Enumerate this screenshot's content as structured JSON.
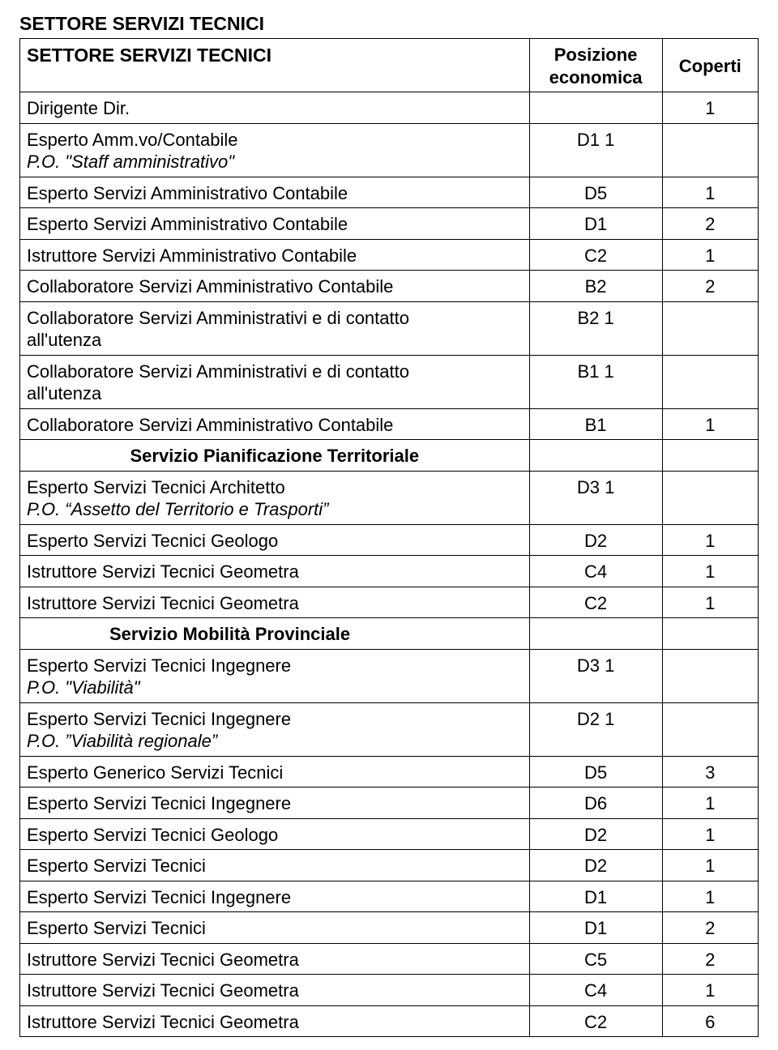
{
  "top_title": "SETTORE SERVIZI TECNICI",
  "header": {
    "title": "SETTORE SERVIZI TECNICI",
    "posizione": "Posizione economica",
    "coperti": "Coperti"
  },
  "rows": [
    {
      "desc_lines": [
        {
          "t": "Dirigente Dir.",
          "cls": ""
        }
      ],
      "pos": "",
      "cop": "1"
    },
    {
      "desc_lines": [
        {
          "t": "Esperto Amm.vo/Contabile",
          "cls": ""
        },
        {
          "t": "P.O. \"Staff amministrativo\"",
          "cls": "italic"
        }
      ],
      "pos": "D1 1",
      "cop": ""
    },
    {
      "desc_lines": [
        {
          "t": "Esperto Servizi Amministrativo Contabile",
          "cls": ""
        }
      ],
      "pos": "D5",
      "cop": "1"
    },
    {
      "desc_lines": [
        {
          "t": "Esperto Servizi Amministrativo Contabile",
          "cls": ""
        }
      ],
      "pos": "D1",
      "cop": "2"
    },
    {
      "desc_lines": [
        {
          "t": "Istruttore Servizi Amministrativo Contabile",
          "cls": ""
        }
      ],
      "pos": "C2",
      "cop": "1"
    },
    {
      "desc_lines": [
        {
          "t": "Collaboratore Servizi Amministrativo Contabile",
          "cls": ""
        }
      ],
      "pos": "B2",
      "cop": "2"
    },
    {
      "desc_lines": [
        {
          "t": "Collaboratore Servizi Amministrativi e di contatto",
          "cls": ""
        },
        {
          "t": "all'utenza",
          "cls": ""
        }
      ],
      "pos": "B2 1",
      "cop": ""
    },
    {
      "desc_lines": [
        {
          "t": "Collaboratore Servizi Amministrativi e di contatto",
          "cls": ""
        },
        {
          "t": "all'utenza",
          "cls": ""
        }
      ],
      "pos": "B1 1",
      "cop": ""
    },
    {
      "desc_lines": [
        {
          "t": "Collaboratore Servizi Amministrativo Contabile",
          "cls": ""
        }
      ],
      "pos": "B1",
      "cop": "1"
    },
    {
      "desc_lines": [
        {
          "t": "Servizio Pianificazione Territoriale",
          "cls": "sub-bold-center"
        }
      ],
      "pos": "",
      "cop": ""
    },
    {
      "desc_lines": [
        {
          "t": "Esperto Servizi Tecnici Architetto",
          "cls": ""
        },
        {
          "t": "P.O. “Assetto del Territorio e Trasporti”",
          "cls": "italic"
        }
      ],
      "pos": "D3 1",
      "cop": ""
    },
    {
      "desc_lines": [
        {
          "t": "Esperto Servizi Tecnici Geologo",
          "cls": ""
        }
      ],
      "pos": "D2",
      "cop": "1"
    },
    {
      "desc_lines": [
        {
          "t": "Istruttore Servizi Tecnici Geometra",
          "cls": ""
        }
      ],
      "pos": "C4",
      "cop": "1"
    },
    {
      "desc_lines": [
        {
          "t": "Istruttore Servizi Tecnici Geometra",
          "cls": ""
        }
      ],
      "pos": "C2",
      "cop": "1"
    },
    {
      "desc_lines": [
        {
          "t": "Servizio Mobilità Provinciale",
          "cls": "sub-bold-indent"
        }
      ],
      "pos": "",
      "cop": ""
    },
    {
      "desc_lines": [
        {
          "t": "Esperto Servizi Tecnici Ingegnere",
          "cls": ""
        },
        {
          "t": "P.O. \"Viabilità\"",
          "cls": "italic"
        }
      ],
      "pos": "D3 1",
      "cop": ""
    },
    {
      "desc_lines": [
        {
          "t": "Esperto Servizi Tecnici Ingegnere",
          "cls": ""
        },
        {
          "t": "P.O. ”Viabilità regionale”",
          "cls": "italic"
        }
      ],
      "pos": "D2 1",
      "cop": ""
    },
    {
      "desc_lines": [
        {
          "t": "Esperto Generico Servizi Tecnici",
          "cls": ""
        }
      ],
      "pos": "D5",
      "cop": "3"
    },
    {
      "desc_lines": [
        {
          "t": "Esperto Servizi Tecnici Ingegnere",
          "cls": ""
        }
      ],
      "pos": "D6",
      "cop": "1"
    },
    {
      "desc_lines": [
        {
          "t": "Esperto Servizi Tecnici Geologo",
          "cls": ""
        }
      ],
      "pos": "D2",
      "cop": "1"
    },
    {
      "desc_lines": [
        {
          "t": "Esperto Servizi Tecnici",
          "cls": ""
        }
      ],
      "pos": "D2",
      "cop": "1"
    },
    {
      "desc_lines": [
        {
          "t": "Esperto Servizi Tecnici Ingegnere",
          "cls": ""
        }
      ],
      "pos": "D1",
      "cop": "1"
    },
    {
      "desc_lines": [
        {
          "t": "Esperto Servizi Tecnici",
          "cls": ""
        }
      ],
      "pos": "D1",
      "cop": "2"
    },
    {
      "desc_lines": [
        {
          "t": "Istruttore Servizi Tecnici Geometra",
          "cls": ""
        }
      ],
      "pos": "C5",
      "cop": "2"
    },
    {
      "desc_lines": [
        {
          "t": "Istruttore Servizi Tecnici Geometra",
          "cls": ""
        }
      ],
      "pos": "C4",
      "cop": "1"
    },
    {
      "desc_lines": [
        {
          "t": "Istruttore Servizi Tecnici Geometra",
          "cls": ""
        }
      ],
      "pos": "C2",
      "cop": "6"
    }
  ]
}
